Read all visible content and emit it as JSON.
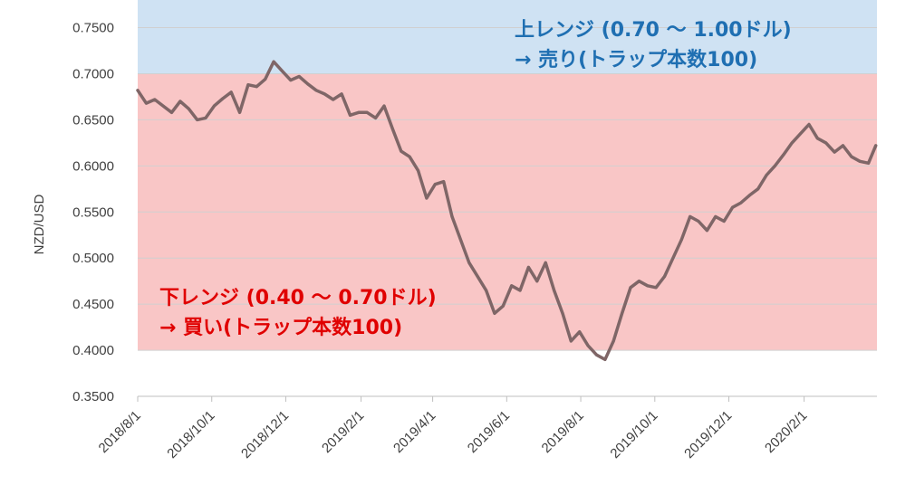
{
  "chart_data": {
    "type": "line",
    "xlabel": "",
    "ylabel": "NZD/USD",
    "ylim": [
      0.35,
      0.78
    ],
    "xlim": [
      "2018-08-01",
      "2020-04-01"
    ],
    "y_ticks": [
      "0.3500",
      "0.4000",
      "0.4500",
      "0.5000",
      "0.5500",
      "0.6000",
      "0.6500",
      "0.7000",
      "0.7500"
    ],
    "x_ticks": [
      "2018/8/1",
      "2018/10/1",
      "2018/12/1",
      "2019/2/1",
      "2019/4/1",
      "2019/6/1",
      "2019/8/1",
      "2019/10/1",
      "2019/12/1",
      "2020/2/1"
    ],
    "x_tick_dates": [
      "2018-08-01",
      "2018-10-01",
      "2018-12-01",
      "2019-02-01",
      "2019-04-01",
      "2019-06-01",
      "2019-08-01",
      "2019-10-01",
      "2019-12-01",
      "2020-02-01"
    ],
    "grid": true,
    "zones": [
      {
        "name": "upper",
        "from": 0.7,
        "to": 0.78,
        "fill": "#cfe2f3",
        "text_color": "#1f6fb2",
        "line1": "上レンジ (0.70 ～ 1.00ドル)",
        "line2": "→ 売り(トラップ本数100)"
      },
      {
        "name": "lower",
        "from": 0.4,
        "to": 0.7,
        "fill": "#f9c6c6",
        "text_color": "#e00000",
        "line1": "下レンジ (0.40 ～ 0.70ドル)",
        "line2": "→ 買い(トラップ本数100)"
      }
    ],
    "series": [
      {
        "color": "#7f6667",
        "x": [
          "2018-08-01",
          "2018-08-08",
          "2018-08-15",
          "2018-08-22",
          "2018-08-29",
          "2018-09-05",
          "2018-09-12",
          "2018-09-19",
          "2018-09-26",
          "2018-10-03",
          "2018-10-10",
          "2018-10-17",
          "2018-10-24",
          "2018-10-31",
          "2018-11-07",
          "2018-11-14",
          "2018-11-21",
          "2018-11-28",
          "2018-12-05",
          "2018-12-12",
          "2018-12-19",
          "2018-12-26",
          "2019-01-02",
          "2019-01-09",
          "2019-01-16",
          "2019-01-23",
          "2019-01-30",
          "2019-02-06",
          "2019-02-13",
          "2019-02-20",
          "2019-02-27",
          "2019-03-06",
          "2019-03-13",
          "2019-03-20",
          "2019-03-27",
          "2019-04-03",
          "2019-04-10",
          "2019-04-17",
          "2019-04-24",
          "2019-05-01",
          "2019-05-08",
          "2019-05-15",
          "2019-05-22",
          "2019-05-29",
          "2019-06-05",
          "2019-06-12",
          "2019-06-19",
          "2019-06-26",
          "2019-07-03",
          "2019-07-10",
          "2019-07-17",
          "2019-07-24",
          "2019-07-31",
          "2019-08-07",
          "2019-08-14",
          "2019-08-21",
          "2019-08-28",
          "2019-09-04",
          "2019-09-11",
          "2019-09-18",
          "2019-09-25",
          "2019-10-02",
          "2019-10-09",
          "2019-10-16",
          "2019-10-23",
          "2019-10-30",
          "2019-11-06",
          "2019-11-13",
          "2019-11-20",
          "2019-11-27",
          "2019-12-04",
          "2019-12-11",
          "2019-12-18",
          "2019-12-25",
          "2020-01-01",
          "2020-01-08",
          "2020-01-15",
          "2020-01-22",
          "2020-01-29",
          "2020-02-05",
          "2020-02-12",
          "2020-02-19",
          "2020-02-26",
          "2020-03-04",
          "2020-03-11",
          "2020-03-18",
          "2020-03-25",
          "2020-03-31"
        ],
        "values": [
          0.682,
          0.668,
          0.672,
          0.665,
          0.658,
          0.67,
          0.662,
          0.65,
          0.652,
          0.665,
          0.673,
          0.68,
          0.658,
          0.688,
          0.686,
          0.694,
          0.713,
          0.703,
          0.693,
          0.697,
          0.689,
          0.682,
          0.678,
          0.672,
          0.678,
          0.655,
          0.658,
          0.658,
          0.652,
          0.665,
          0.64,
          0.616,
          0.61,
          0.595,
          0.565,
          0.58,
          0.583,
          0.545,
          0.52,
          0.495,
          0.48,
          0.465,
          0.44,
          0.448,
          0.47,
          0.465,
          0.49,
          0.475,
          0.495,
          0.465,
          0.44,
          0.41,
          0.42,
          0.405,
          0.395,
          0.39,
          0.41,
          0.44,
          0.468,
          0.475,
          0.47,
          0.468,
          0.48,
          0.5,
          0.52,
          0.545,
          0.54,
          0.53,
          0.545,
          0.54,
          0.555,
          0.56,
          0.568,
          0.575,
          0.59,
          0.6,
          0.612,
          0.625,
          0.635,
          0.645,
          0.63,
          0.625,
          0.615,
          0.622,
          0.61,
          0.605,
          0.603,
          0.622
        ]
      }
    ]
  }
}
